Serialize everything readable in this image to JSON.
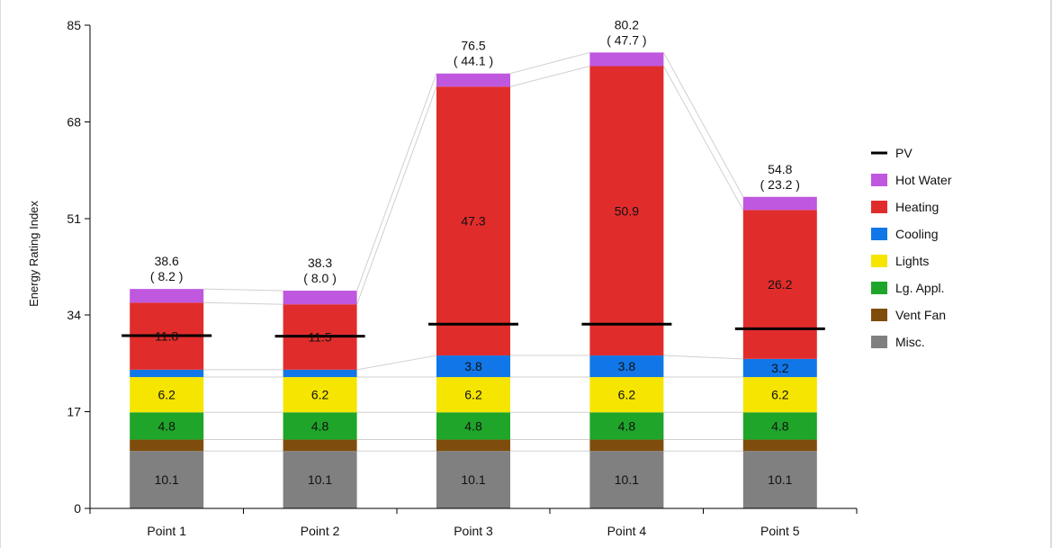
{
  "chart_data": {
    "type": "bar",
    "stacked": true,
    "categories": [
      "Point 1",
      "Point 2",
      "Point 3",
      "Point 4",
      "Point 5"
    ],
    "ylabel": "Energy Rating Index",
    "ylim": [
      0,
      85
    ],
    "yticks": [
      "0",
      "17",
      "34",
      "51",
      "68",
      "85"
    ],
    "totals": [
      "38.6",
      "38.3",
      "76.5",
      "80.2",
      "54.8"
    ],
    "totals_secondary": [
      "( 8.2 )",
      "( 8.0 )",
      "( 44.1 )",
      "( 47.7 )",
      "( 23.2 )"
    ],
    "series": [
      {
        "name": "Misc.",
        "color": "#808080",
        "values": [
          10.1,
          10.1,
          10.1,
          10.1,
          10.1
        ],
        "labels": [
          "10.1",
          "10.1",
          "10.1",
          "10.1",
          "10.1"
        ]
      },
      {
        "name": "Vent Fan",
        "color": "#7f4c0d",
        "values": [
          2.0,
          2.0,
          2.0,
          2.0,
          2.0
        ],
        "labels": [
          "",
          "",
          "",
          "",
          ""
        ]
      },
      {
        "name": "Lg. Appl.",
        "color": "#1fa52a",
        "values": [
          4.8,
          4.8,
          4.8,
          4.8,
          4.8
        ],
        "labels": [
          "4.8",
          "4.8",
          "4.8",
          "4.8",
          "4.8"
        ]
      },
      {
        "name": "Lights",
        "color": "#f5e500",
        "values": [
          6.2,
          6.2,
          6.2,
          6.2,
          6.2
        ],
        "labels": [
          "6.2",
          "6.2",
          "6.2",
          "6.2",
          "6.2"
        ]
      },
      {
        "name": "Cooling",
        "color": "#1177e8",
        "values": [
          1.3,
          1.3,
          3.8,
          3.8,
          3.2
        ],
        "labels": [
          "",
          "",
          "3.8",
          "3.8",
          "3.2"
        ]
      },
      {
        "name": "Heating",
        "color": "#e12c2c",
        "values": [
          11.8,
          11.5,
          47.3,
          50.9,
          26.2
        ],
        "labels": [
          "11.8",
          "11.5",
          "47.3",
          "50.9",
          "26.2"
        ]
      },
      {
        "name": "Hot Water",
        "color": "#bf57df",
        "values": [
          2.4,
          2.4,
          2.3,
          2.4,
          2.3
        ],
        "labels": [
          "",
          "",
          "",
          "",
          ""
        ]
      }
    ],
    "pv": {
      "name": "PV",
      "color": "#000000",
      "values": [
        30.4,
        30.3,
        32.4,
        32.4,
        31.6
      ]
    },
    "legend": {
      "position": "right",
      "items": [
        {
          "name": "PV",
          "color": "#000000",
          "kind": "line"
        },
        {
          "name": "Hot Water",
          "color": "#bf57df",
          "kind": "swatch"
        },
        {
          "name": "Heating",
          "color": "#e12c2c",
          "kind": "swatch"
        },
        {
          "name": "Cooling",
          "color": "#1177e8",
          "kind": "swatch"
        },
        {
          "name": "Lights",
          "color": "#f5e500",
          "kind": "swatch"
        },
        {
          "name": "Lg. Appl.",
          "color": "#1fa52a",
          "kind": "swatch"
        },
        {
          "name": "Vent Fan",
          "color": "#7f4c0d",
          "kind": "swatch"
        },
        {
          "name": "Misc.",
          "color": "#808080",
          "kind": "swatch"
        }
      ]
    },
    "grid": false
  }
}
